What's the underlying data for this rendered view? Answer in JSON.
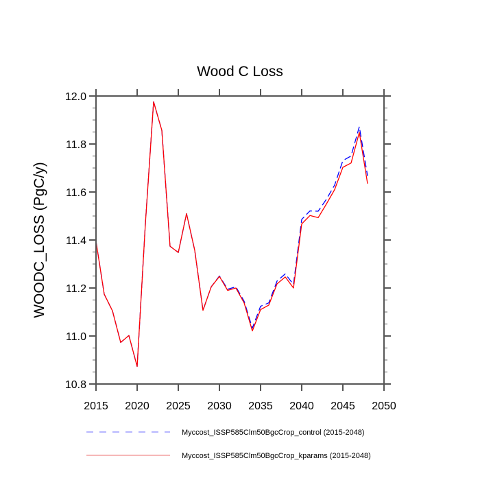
{
  "chart_data": {
    "type": "line",
    "title": "Wood C Loss",
    "xlabel": "",
    "ylabel": "WOODC_LOSS  (PgC/y)",
    "xlim": [
      2015,
      2050
    ],
    "ylim": [
      10.8,
      12.0
    ],
    "xticks": [
      2015,
      2020,
      2025,
      2030,
      2035,
      2040,
      2045,
      2050
    ],
    "xtick_labels": [
      "2015",
      "2020",
      "2025",
      "2030",
      "2035",
      "2040",
      "2045",
      "2050"
    ],
    "yticks": [
      10.8,
      11.0,
      11.2,
      11.4,
      11.6,
      11.8,
      12.0
    ],
    "ytick_labels": [
      "10.8",
      "11.0",
      "11.2",
      "11.4",
      "11.6",
      "11.8",
      "12.0"
    ],
    "grid": false,
    "legend_position": "bottom",
    "x": [
      2015,
      2016,
      2017,
      2018,
      2019,
      2020,
      2021,
      2022,
      2023,
      2024,
      2025,
      2026,
      2027,
      2028,
      2029,
      2030,
      2031,
      2032,
      2033,
      2034,
      2035,
      2036,
      2037,
      2038,
      2039,
      2040,
      2041,
      2042,
      2043,
      2044,
      2045,
      2046,
      2047,
      2048
    ],
    "series": [
      {
        "name": "Myccost_ISSP585Clm50BgcCrop_control (2015-2048)",
        "color": "#0000ff",
        "legend_color": "#8c8cff",
        "dash": true,
        "values": [
          11.395,
          11.174,
          11.105,
          10.973,
          11.002,
          10.873,
          11.467,
          11.976,
          11.857,
          11.374,
          11.348,
          11.51,
          11.357,
          11.107,
          11.205,
          11.25,
          11.195,
          11.205,
          11.145,
          11.033,
          11.124,
          11.138,
          11.229,
          11.259,
          11.215,
          11.486,
          11.521,
          11.52,
          11.57,
          11.629,
          11.731,
          11.75,
          11.872,
          11.667
        ]
      },
      {
        "name": "Myccost_ISSP585Clm50BgcCrop_kparams (2015-2048)",
        "color": "#ff0000",
        "legend_color": "#f08c8c",
        "dash": false,
        "values": [
          11.395,
          11.174,
          11.105,
          10.973,
          11.002,
          10.873,
          11.467,
          11.976,
          11.857,
          11.374,
          11.348,
          11.51,
          11.357,
          11.107,
          11.205,
          11.248,
          11.19,
          11.2,
          11.138,
          11.021,
          11.11,
          11.129,
          11.217,
          11.246,
          11.2,
          11.467,
          11.502,
          11.493,
          11.55,
          11.61,
          11.703,
          11.721,
          11.848,
          11.635
        ]
      }
    ]
  }
}
